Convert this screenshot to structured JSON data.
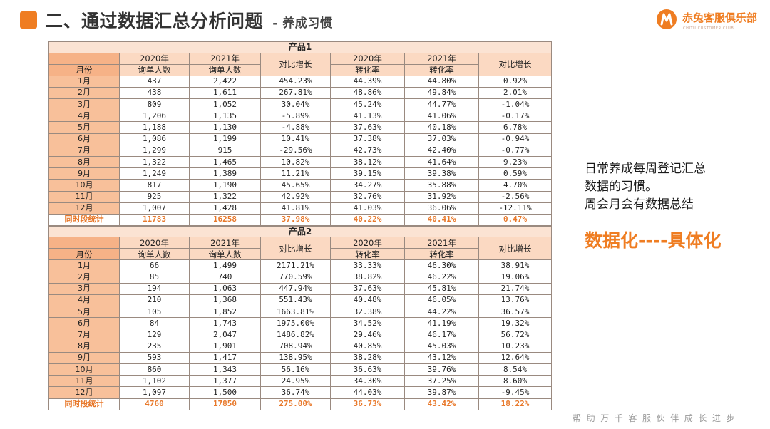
{
  "header": {
    "title": "二、通过数据汇总分析问题",
    "subtitle": "- 养成习惯",
    "logo_name": "赤兔客服俱乐部",
    "logo_sub": "CHITU CUSTOMER CLUB"
  },
  "tables": [
    {
      "caption": "产品1",
      "headers": {
        "c1_top": "2020年",
        "c1_bottom": "询单人数",
        "c2_top": "2021年",
        "c2_bottom": "询单人数",
        "c3": "对比增长",
        "c4_top": "2020年",
        "c4_bottom": "转化率",
        "c5_top": "2021年",
        "c5_bottom": "转化率",
        "c6": "对比增长",
        "month": "月份"
      },
      "rows": [
        [
          "1月",
          "437",
          "2,422",
          "454.23%",
          "44.39%",
          "44.80%",
          "0.92%"
        ],
        [
          "2月",
          "438",
          "1,611",
          "267.81%",
          "48.86%",
          "49.84%",
          "2.01%"
        ],
        [
          "3月",
          "809",
          "1,052",
          "30.04%",
          "45.24%",
          "44.77%",
          "-1.04%"
        ],
        [
          "4月",
          "1,206",
          "1,135",
          "-5.89%",
          "41.13%",
          "41.06%",
          "-0.17%"
        ],
        [
          "5月",
          "1,188",
          "1,130",
          "-4.88%",
          "37.63%",
          "40.18%",
          "6.78%"
        ],
        [
          "6月",
          "1,086",
          "1,199",
          "10.41%",
          "37.38%",
          "37.03%",
          "-0.94%"
        ],
        [
          "7月",
          "1,299",
          "915",
          "-29.56%",
          "42.73%",
          "42.40%",
          "-0.77%"
        ],
        [
          "8月",
          "1,322",
          "1,465",
          "10.82%",
          "38.12%",
          "41.64%",
          "9.23%"
        ],
        [
          "9月",
          "1,249",
          "1,389",
          "11.21%",
          "39.15%",
          "39.38%",
          "0.59%"
        ],
        [
          "10月",
          "817",
          "1,190",
          "45.65%",
          "34.27%",
          "35.88%",
          "4.70%"
        ],
        [
          "11月",
          "925",
          "1,322",
          "42.92%",
          "32.76%",
          "31.92%",
          "-2.56%"
        ],
        [
          "12月",
          "1,007",
          "1,428",
          "41.81%",
          "41.03%",
          "36.06%",
          "-12.11%"
        ]
      ],
      "total": [
        "同时段统计",
        "11783",
        "16258",
        "37.98%",
        "40.22%",
        "40.41%",
        "0.47%"
      ]
    },
    {
      "caption": "产品2",
      "headers": {
        "c1_top": "2020年",
        "c1_bottom": "询单人数",
        "c2_top": "2021年",
        "c2_bottom": "询单人数",
        "c3": "对比增长",
        "c4_top": "2020年",
        "c4_bottom": "转化率",
        "c5_top": "2021年",
        "c5_bottom": "转化率",
        "c6": "对比增长",
        "month": "月份"
      },
      "rows": [
        [
          "1月",
          "66",
          "1,499",
          "2171.21%",
          "33.33%",
          "46.30%",
          "38.91%"
        ],
        [
          "2月",
          "85",
          "740",
          "770.59%",
          "38.82%",
          "46.22%",
          "19.06%"
        ],
        [
          "3月",
          "194",
          "1,063",
          "447.94%",
          "37.63%",
          "45.81%",
          "21.74%"
        ],
        [
          "4月",
          "210",
          "1,368",
          "551.43%",
          "40.48%",
          "46.05%",
          "13.76%"
        ],
        [
          "5月",
          "105",
          "1,852",
          "1663.81%",
          "32.38%",
          "44.22%",
          "36.57%"
        ],
        [
          "6月",
          "84",
          "1,743",
          "1975.00%",
          "34.52%",
          "41.19%",
          "19.32%"
        ],
        [
          "7月",
          "129",
          "2,047",
          "1486.82%",
          "29.46%",
          "46.17%",
          "56.72%"
        ],
        [
          "8月",
          "235",
          "1,901",
          "708.94%",
          "40.85%",
          "45.03%",
          "10.23%"
        ],
        [
          "9月",
          "593",
          "1,417",
          "138.95%",
          "38.28%",
          "43.12%",
          "12.64%"
        ],
        [
          "10月",
          "860",
          "1,343",
          "56.16%",
          "36.63%",
          "39.76%",
          "8.54%"
        ],
        [
          "11月",
          "1,102",
          "1,377",
          "24.95%",
          "34.30%",
          "37.25%",
          "8.60%"
        ],
        [
          "12月",
          "1,097",
          "1,500",
          "36.74%",
          "44.03%",
          "39.87%",
          "-9.45%"
        ]
      ],
      "total": [
        "同时段统计",
        "4760",
        "17850",
        "275.00%",
        "36.73%",
        "43.42%",
        "18.22%"
      ]
    }
  ],
  "side_note": {
    "line1": "日常养成每周登记汇总",
    "line2": "数据的习惯。",
    "line3": "周会月会有数据总结"
  },
  "slogan": "数据化----具体化",
  "footer": "帮助万千客服伙伴成长进步",
  "colors": {
    "accent": "#ef7d22",
    "header_fill": "#fbd9c2",
    "month_fill": "#f8c09a",
    "total_text": "#e8782a"
  }
}
